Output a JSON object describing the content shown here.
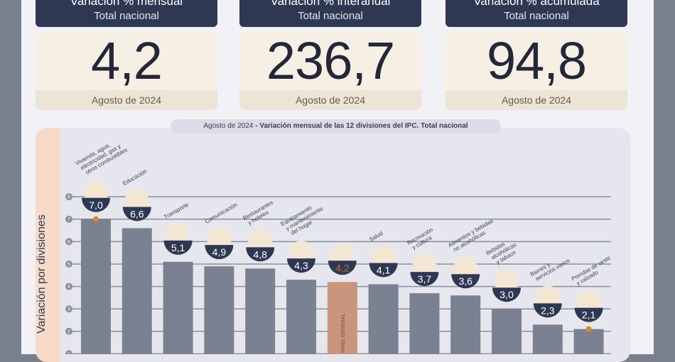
{
  "cards": [
    {
      "title": "Variación % mensual",
      "subtitle": "Total nacional",
      "value": "4,2",
      "period": "Agosto de 2024"
    },
    {
      "title": "Variación % interanual",
      "subtitle": "Total nacional",
      "value": "236,7",
      "period": "Agosto de 2024"
    },
    {
      "title": "Variación % acumulada",
      "subtitle": "Total nacional",
      "value": "94,8",
      "period": "Agosto de 2024"
    }
  ],
  "chart_data": {
    "type": "bar",
    "title_period": "Agosto de 2024",
    "title": " - Variación mensual de las 12 divisiones del IPC. Total nacional",
    "ylabel": "Variación por divisiones",
    "yticks": [
      1,
      2,
      3,
      4,
      5,
      6,
      7,
      8
    ],
    "ylim": [
      0,
      8
    ],
    "grid": true,
    "categories": [
      [
        "Vivienda, agua,",
        "electricidad, gas y",
        "otros combustibles"
      ],
      [
        "Educación"
      ],
      [
        "Transporte"
      ],
      [
        "Comunicación"
      ],
      [
        "Restaurantes",
        "y hoteles"
      ],
      [
        "Equipamiento",
        "y mantenimiento",
        "del hogar"
      ],
      [
        "NIVEL GENERAL"
      ],
      [
        "Salud"
      ],
      [
        "Recreación",
        "y cultura"
      ],
      [
        "Alimentos y bebidas",
        "no alcohólicas"
      ],
      [
        "Bebidas",
        "alcohólicas",
        "y tabaco"
      ],
      [
        "Bienes y",
        "servicios varios"
      ],
      [
        "Prendas de vestir",
        "y calzado"
      ]
    ],
    "values": [
      7.0,
      6.6,
      5.1,
      4.9,
      4.8,
      4.3,
      4.2,
      4.1,
      3.7,
      3.6,
      3.0,
      2.3,
      2.1
    ],
    "value_labels": [
      "7,0",
      "6,6",
      "5,1",
      "4,9",
      "4,8",
      "4,3",
      "4,2",
      "4,1",
      "3,7",
      "3,6",
      "3,0",
      "2,3",
      "2,1"
    ],
    "highlight_index": 6,
    "markers": [
      "max",
      "min"
    ],
    "colors": {
      "bar": "#7a8291",
      "highlight": "#c9957c",
      "badge": "#2f3853",
      "highlight_text": "#c96a2e",
      "marker": "#d98a1e"
    }
  }
}
